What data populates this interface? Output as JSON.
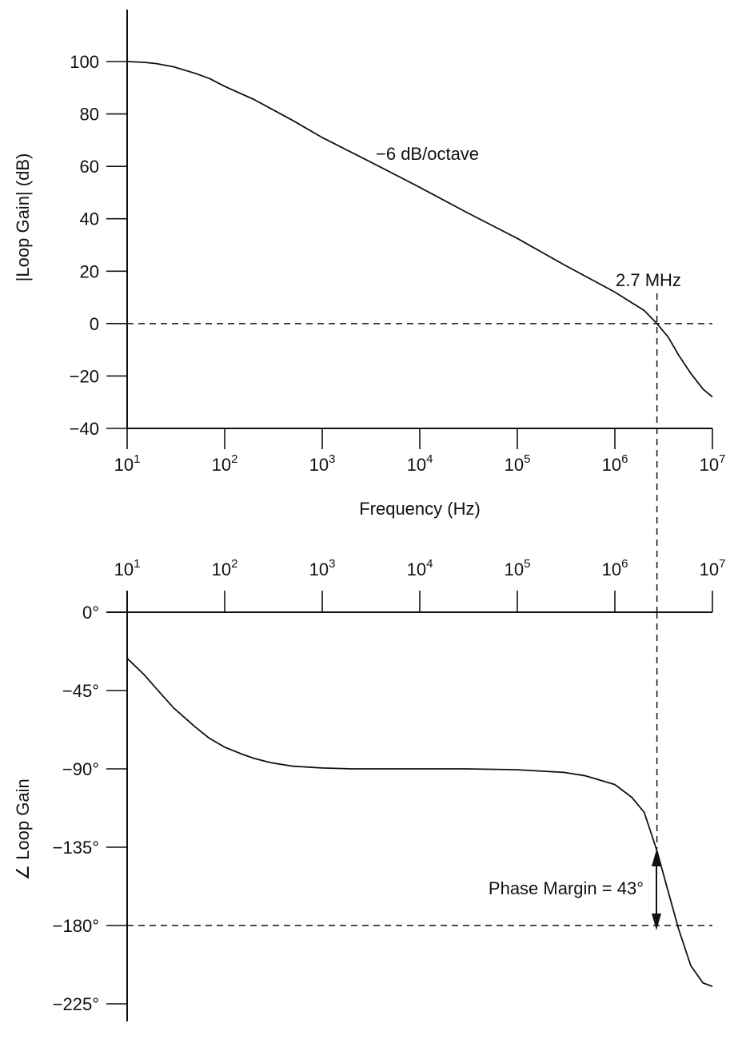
{
  "chart_data": [
    {
      "type": "line",
      "panel": "magnitude",
      "x_scale": "log",
      "xlabel": "Frequency (Hz)",
      "ylabel": "|Loop Gain| (dB)",
      "xlim": [
        10,
        10000000
      ],
      "ylim": [
        -40,
        100
      ],
      "xticks": [
        10,
        100,
        1000,
        10000,
        100000,
        1000000,
        10000000
      ],
      "xtick_labels": [
        {
          "base": "10",
          "exp": "1"
        },
        {
          "base": "10",
          "exp": "2"
        },
        {
          "base": "10",
          "exp": "3"
        },
        {
          "base": "10",
          "exp": "4"
        },
        {
          "base": "10",
          "exp": "5"
        },
        {
          "base": "10",
          "exp": "6"
        },
        {
          "base": "10",
          "exp": "7"
        }
      ],
      "yticks": [
        100,
        80,
        60,
        40,
        20,
        0,
        -20,
        -40
      ],
      "ytick_labels": [
        "100",
        "80",
        "60",
        "40",
        "20",
        "0",
        "−20",
        "−40"
      ],
      "grid": false,
      "series": [
        {
          "x": [
            10,
            15,
            20,
            30,
            50,
            70,
            100,
            200,
            500,
            1000,
            3000,
            10000,
            30000,
            100000,
            300000,
            1000000,
            2000000,
            2700000,
            3500000,
            4500000,
            6000000,
            8000000,
            10000000
          ],
          "y": [
            100,
            99.7,
            99.2,
            98,
            95.5,
            93.5,
            90.5,
            85.5,
            77.5,
            71,
            62,
            52,
            42.5,
            32.5,
            22.5,
            12,
            5,
            0,
            -5,
            -12,
            -19,
            -25,
            -28
          ]
        }
      ],
      "annotations": [
        {
          "text": "−6 dB/octave",
          "x": 20000,
          "y": 66
        },
        {
          "text": "2.7 MHz",
          "x": 2700000,
          "y": 15
        }
      ],
      "reference_lines": [
        {
          "orientation": "horizontal",
          "y": 0
        },
        {
          "orientation": "vertical",
          "x": 2700000
        }
      ]
    },
    {
      "type": "line",
      "panel": "phase",
      "x_scale": "log",
      "ylabel": "∠ Loop Gain",
      "xlim": [
        10,
        10000000
      ],
      "ylim": [
        -225,
        0
      ],
      "xticks": [
        10,
        100,
        1000,
        10000,
        100000,
        1000000,
        10000000
      ],
      "xtick_labels": [
        {
          "base": "10",
          "exp": "1"
        },
        {
          "base": "10",
          "exp": "2"
        },
        {
          "base": "10",
          "exp": "3"
        },
        {
          "base": "10",
          "exp": "4"
        },
        {
          "base": "10",
          "exp": "5"
        },
        {
          "base": "10",
          "exp": "6"
        },
        {
          "base": "10",
          "exp": "7"
        }
      ],
      "yticks": [
        0,
        -45,
        -90,
        -135,
        -180,
        -225
      ],
      "ytick_labels": [
        "0°",
        "−45°",
        "−90°",
        "−135°",
        "−180°",
        "−225°"
      ],
      "grid": false,
      "series": [
        {
          "x": [
            10,
            15,
            20,
            30,
            50,
            70,
            100,
            150,
            200,
            300,
            500,
            1000,
            2000,
            5000,
            10000,
            30000,
            100000,
            300000,
            500000,
            1000000,
            1500000,
            2000000,
            2700000,
            3500000,
            4500000,
            6000000,
            8000000,
            10000000
          ],
          "y": [
            -26.5,
            -36,
            -44,
            -55,
            -66,
            -72.5,
            -77.5,
            -81.5,
            -84,
            -86.5,
            -88.5,
            -89.5,
            -90,
            -90,
            -90,
            -90,
            -90.5,
            -92,
            -94,
            -99,
            -106.5,
            -115,
            -137,
            -160,
            -182,
            -203,
            -213,
            -215
          ]
        }
      ],
      "annotations": [
        {
          "text": "Phase Margin = 43°",
          "x": 2700000,
          "y": -158
        }
      ],
      "reference_lines": [
        {
          "orientation": "horizontal",
          "y": -180
        },
        {
          "orientation": "vertical",
          "x": 2700000
        }
      ]
    }
  ]
}
